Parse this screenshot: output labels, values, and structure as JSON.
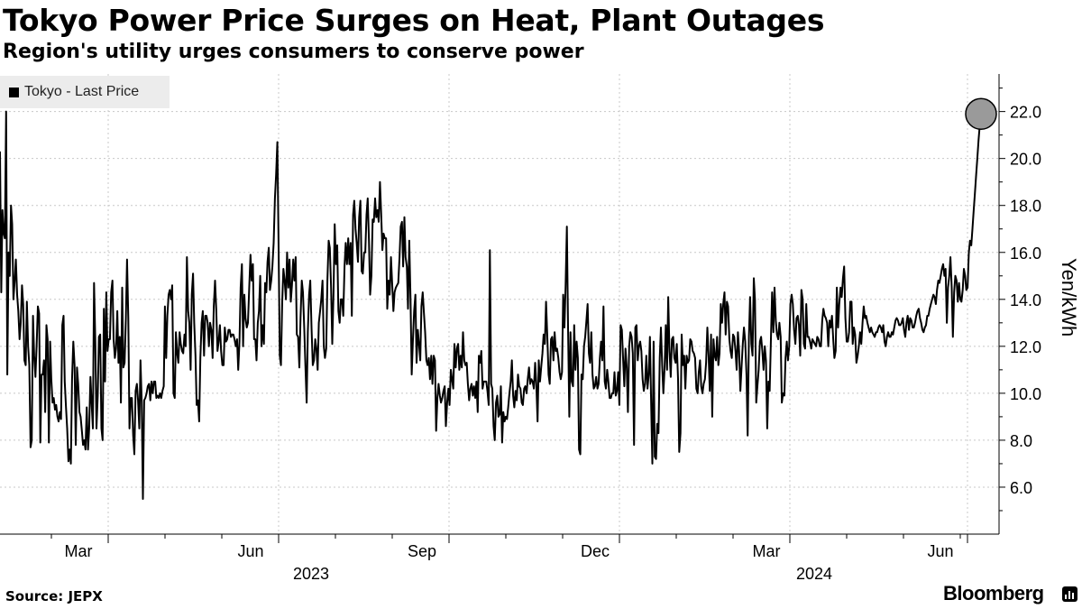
{
  "header": {
    "title": "Tokyo Power Price Surges on Heat, Plant Outages",
    "subtitle": "Region's utility urges consumers to conserve power"
  },
  "legend": {
    "label": "Tokyo - Last Price"
  },
  "footer": {
    "source": "Source: JEPX",
    "brand": "Bloomberg"
  },
  "colors": {
    "line": "#000000",
    "grid": "#c8c8c8",
    "highlight": "#9a9a9a",
    "legend_bg": "#ececec"
  },
  "chart_data": {
    "type": "line",
    "title": "Tokyo Power Price Surges on Heat, Plant Outages",
    "subtitle": "Region's utility urges consumers to conserve power",
    "series": [
      {
        "name": "Tokyo - Last Price",
        "values": [
          20.3,
          14.3,
          17.8,
          16.8,
          16.6,
          22.0,
          10.8,
          16.0,
          15.0,
          18.0,
          17.2,
          14.0,
          14.8,
          15.7,
          14.2,
          13.5,
          12.3,
          13.0,
          14.6,
          13.8,
          11.4,
          11.2,
          13.9,
          12.0,
          11.2,
          7.7,
          8.0,
          13.3,
          11.6,
          10.7,
          12.0,
          13.7,
          13.4,
          7.9,
          10.8,
          10.8,
          11.4,
          9.2,
          12.9,
          12.3,
          7.9,
          12.2,
          10.6,
          9.6,
          9.8,
          9.3,
          9.5,
          9.0,
          8.8,
          9.2,
          8.9,
          12.9,
          13.3,
          10.5,
          9.4,
          8.5,
          7.1,
          7.6,
          7.0,
          10.6,
          12.2,
          11.2,
          7.8,
          11.1,
          10.4,
          9.2,
          9.0,
          8.4,
          7.8,
          8.0,
          7.6,
          9.4,
          7.6,
          8.5,
          10.7,
          9.6,
          8.5,
          14.7,
          12.2,
          8.5,
          9.9,
          12.4,
          12.5,
          8.5,
          8.0,
          13.6,
          10.5,
          14.3,
          11.8,
          12.3,
          12.3,
          14.3,
          14.8,
          12.3,
          11.5,
          11.9,
          13.5,
          11.3,
          12.4,
          9.6,
          14.5,
          11.1,
          11.3,
          13.2,
          15.7,
          13.2,
          8.5,
          9.8,
          9.8,
          8.2,
          7.4,
          10.1,
          10.4,
          9.7,
          8.5,
          11.4,
          9.6,
          5.5,
          9.7,
          9.8,
          10.0,
          10.3,
          10.4,
          9.7,
          10.5,
          10.0,
          10.5,
          10.5,
          9.8,
          9.9,
          9.8,
          10.0,
          9.8,
          10.1,
          10.3,
          13.7,
          11.5,
          13.3,
          14.2,
          14.4,
          14.0,
          14.6,
          10.0,
          9.8,
          12.6,
          11.7,
          11.3,
          12.6,
          12.1,
          11.8,
          11.7,
          12.5,
          12.0,
          15.8,
          13.5,
          13.0,
          11.0,
          14.2,
          15.1,
          13.0,
          11.6,
          9.5,
          9.7,
          8.8,
          11.5,
          13.0,
          13.5,
          11.6,
          13.3,
          13.3,
          13.0,
          12.0,
          13.0,
          12.7,
          11.5,
          13.7,
          14.8,
          13.6,
          11.8,
          12.2,
          12.9,
          11.8,
          11.2,
          11.2,
          12.8,
          12.2,
          12.3,
          12.7,
          12.7,
          12.4,
          12.5,
          12.5,
          12.3,
          12.0,
          12.3,
          11.0,
          12.2,
          14.5,
          15.5,
          12.0,
          14.2,
          13.2,
          12.8,
          13.0,
          14.5,
          15.9,
          14.8,
          15.5,
          12.3,
          12.3,
          11.4,
          13.0,
          13.5,
          15.0,
          12.0,
          12.9,
          12.1,
          14.7,
          14.3,
          15.6,
          16.2,
          14.4,
          14.8,
          15.4,
          16.4,
          18.3,
          19.3,
          20.7,
          16.5,
          11.6,
          11.2,
          13.9,
          15.3,
          14.8,
          14.0,
          16.0,
          14.5,
          15.7,
          13.9,
          14.6,
          15.7,
          14.8,
          15.8,
          12.5,
          12.4,
          11.1,
          13.2,
          14.8,
          14.3,
          12.8,
          11.2,
          9.6,
          12.6,
          14.2,
          14.8,
          12.8,
          11.2,
          11.4,
          12.3,
          11.9,
          11.0,
          13.0,
          13.5,
          14.0,
          14.8,
          12.0,
          11.5,
          11.9,
          14.8,
          16.5,
          16.2,
          14.5,
          12.1,
          14.3,
          17.2,
          15.5,
          16.3,
          13.5,
          13.0,
          14.0,
          14.0,
          13.3,
          15.4,
          16.4,
          15.5,
          16.6,
          15.5,
          16.4,
          13.3,
          17.6,
          18.2,
          17.0,
          16.4,
          15.6,
          17.5,
          18.2,
          15.2,
          15.1,
          16.0,
          16.0,
          17.6,
          18.3,
          16.5,
          14.2,
          15.0,
          17.4,
          17.3,
          18.3,
          17.5,
          17.8,
          17.3,
          19.0,
          17.7,
          16.1,
          16.8,
          16.6,
          16.6,
          13.6,
          14.8,
          14.2,
          15.8,
          14.7,
          13.5,
          14.3,
          14.5,
          14.6,
          14.7,
          15.8,
          17.1,
          17.3,
          15.4,
          17.5,
          15.8,
          15.4,
          13.6,
          16.5,
          14.0,
          10.8,
          12.3,
          13.5,
          14.2,
          11.3,
          12.7,
          12.1,
          11.4,
          13.7,
          14.3,
          13.4,
          12.6,
          11.4,
          11.2,
          11.5,
          10.6,
          11.6,
          10.4,
          11.6,
          11.4,
          8.4,
          9.8,
          10.4,
          9.9,
          9.6,
          9.8,
          10.1,
          10.3,
          8.6,
          9.6,
          10.2,
          9.5,
          11.0,
          10.6,
          10.2,
          12.1,
          11.1,
          11.9,
          12.1,
          11.0,
          11.6,
          11.1,
          12.6,
          11.4,
          11.2,
          11.3,
          10.4,
          9.7,
          10.2,
          10.4,
          9.9,
          10.3,
          9.8,
          10.5,
          9.2,
          11.6,
          11.3,
          11.8,
          10.2,
          10.5,
          10.5,
          10.5,
          10.1,
          9.5,
          16.1,
          10.4,
          10.2,
          8.6,
          8.0,
          9.6,
          9.9,
          9.0,
          9.1,
          10.3,
          7.9,
          9.2,
          8.8,
          9.0,
          8.9,
          9.4,
          10.0,
          10.5,
          11.4,
          9.9,
          9.4,
          10.1,
          9.7,
          10.8,
          10.3,
          10.2,
          9.6,
          9.5,
          10.2,
          10.3,
          10.0,
          10.6,
          11.1,
          10.4,
          10.6,
          10.5,
          10.2,
          11.3,
          10.4,
          8.8,
          11.4,
          10.5,
          11.1,
          11.7,
          12.5,
          12.1,
          13.9,
          12.4,
          10.8,
          10.4,
          12.3,
          12.4,
          11.4,
          12.6,
          11.8,
          11.9,
          11.5,
          10.9,
          10.6,
          10.9,
          14.2,
          12.8,
          14.6,
          17.1,
          12.8,
          9.0,
          12.6,
          10.5,
          10.3,
          12.9,
          11.0,
          12.2,
          11.5,
          7.6,
          7.4,
          10.8,
          10.6,
          12.0,
          12.4,
          13.1,
          13.8,
          11.7,
          11.3,
          12.6,
          10.8,
          10.2,
          10.3,
          10.7,
          10.2,
          10.4,
          11.5,
          12.2,
          11.4,
          13.7,
          10.5,
          10.2,
          11.0,
          10.5,
          9.8,
          9.8,
          10.0,
          10.0,
          10.9,
          9.9,
          10.1,
          10.9,
          9.5,
          12.9,
          12.7,
          11.5,
          10.3,
          11.9,
          11.1,
          9.2,
          12.0,
          12.6,
          12.4,
          11.7,
          7.8,
          12.8,
          12.9,
          11.4,
          12.0,
          12.2,
          11.8,
          10.6,
          10.1,
          10.4,
          11.6,
          10.2,
          10.8,
          12.4,
          9.5,
          7.0,
          12.2,
          7.3,
          7.2,
          8.7,
          8.3,
          11.5,
          12.8,
          11.2,
          10.0,
          11.1,
          12.9,
          11.0,
          14.1,
          11.8,
          10.7,
          12.3,
          12.4,
          11.5,
          11.3,
          12.1,
          10.6,
          7.5,
          8.3,
          12.5,
          11.2,
          11.6,
          10.2,
          11.6,
          11.3,
          11.4,
          12.3,
          12.2,
          11.8,
          11.7,
          11.5,
          10.2,
          10.0,
          10.9,
          11.4,
          10.3,
          10.0,
          10.4,
          10.6,
          11.3,
          12.8,
          11.6,
          10.1,
          12.5,
          9.0,
          12.3,
          11.6,
          11.4,
          12.4,
          11.2,
          11.7,
          13.8,
          13.0,
          13.8,
          14.3,
          12.5,
          13.9,
          13.7,
          12.3,
          11.8,
          11.5,
          12.5,
          12.4,
          11.8,
          11.0,
          12.6,
          11.8,
          10.1,
          11.1,
          12.1,
          12.8,
          12.2,
          10.8,
          8.2,
          12.4,
          14.1,
          12.1,
          11.6,
          14.9,
          14.0,
          9.6,
          10.3,
          11.0,
          12.2,
          12.4,
          11.8,
          11.0,
          12.0,
          11.4,
          8.5,
          10.5,
          10.1,
          12.3,
          14.3,
          12.6,
          14.5,
          13.1,
          12.5,
          12.3,
          13.0,
          12.4,
          9.6,
          10.0,
          9.9,
          11.5,
          12.2,
          11.4,
          12.0,
          13.8,
          14.2,
          13.8,
          12.7,
          12.1,
          13.2,
          13.3,
          12.9,
          11.6,
          14.4,
          14.0,
          12.1,
          11.9,
          13.8,
          12.4,
          12.4,
          12.2,
          11.9,
          12.3,
          12.2,
          12.1,
          12.0,
          12.4,
          12.3,
          12.0,
          12.0,
          13.1,
          13.6,
          13.3,
          13.2,
          13.0,
          12.0,
          13.1,
          12.8,
          13.3,
          12.3,
          11.5,
          11.8,
          14.5,
          12.8,
          13.8,
          14.5,
          14.1,
          14.9,
          15.4,
          13.2,
          12.2,
          12.2,
          12.6,
          13.9,
          13.9,
          12.1,
          12.8,
          12.5,
          11.3,
          11.6,
          12.0,
          12.6,
          12.1,
          13.0,
          13.7,
          13.2,
          13.3,
          13.0,
          12.8,
          12.6,
          12.8,
          12.6,
          12.5,
          12.4,
          12.6,
          12.6,
          12.8,
          12.9,
          12.8,
          12.6,
          12.9,
          12.2,
          12.0,
          12.4,
          12.6,
          12.4,
          12.4,
          12.6,
          12.5,
          12.8,
          13.1,
          13.2,
          13.1,
          12.9,
          12.9,
          13.0,
          13.2,
          12.7,
          12.4,
          13.0,
          13.3,
          12.7,
          13.2,
          13.1,
          12.8,
          12.8,
          13.0,
          13.3,
          13.5,
          13.6,
          13.2,
          13.0,
          12.7,
          12.6,
          12.8,
          12.9,
          13.3,
          13.3,
          13.6,
          13.8,
          14.0,
          14.2,
          14.1,
          13.8,
          14.4,
          14.8,
          14.7,
          15.0,
          15.3,
          15.5,
          15.0,
          15.3,
          13.0,
          14.5,
          15.0,
          15.8,
          14.5,
          12.4,
          14.3,
          15.0,
          14.8,
          13.9,
          14.7,
          14.0,
          13.9,
          14.4,
          15.3,
          15.0,
          14.4,
          14.5,
          16.0,
          16.5,
          16.3,
          17.0,
          17.8,
          18.5,
          19.3,
          20.0,
          20.8,
          21.4,
          21.9
        ]
      }
    ],
    "x_tick_labels": [
      "Mar",
      "Jun",
      "Sep",
      "Dec",
      "Mar",
      "Jun"
    ],
    "x_year_labels": [
      "2023",
      "2024"
    ],
    "y_ticks": [
      6.0,
      8.0,
      10.0,
      12.0,
      14.0,
      16.0,
      18.0,
      20.0,
      22.0
    ],
    "y_tick_labels": [
      "6.0",
      "8.0",
      "10.0",
      "12.0",
      "14.0",
      "16.0",
      "18.0",
      "20.0",
      "22.0"
    ],
    "ylabel": "Yen/kWh",
    "xlabel": "",
    "ylim": [
      4.0,
      23.6
    ],
    "xlim_start": "2023-02-01",
    "xlim_end": "2024-06-30",
    "grid": true,
    "legend_position": "top-left",
    "highlight": {
      "label": "latest value",
      "value": 21.9
    }
  }
}
